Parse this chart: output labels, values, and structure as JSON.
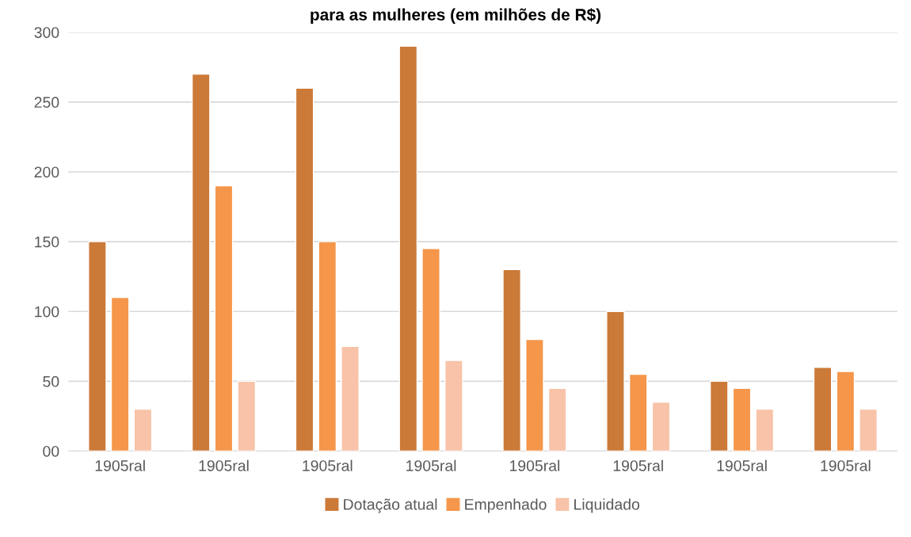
{
  "chart_data": {
    "type": "bar",
    "title": "para as mulheres (em milhões de R$)",
    "categories": [
      "1905ral",
      "1905ral",
      "1905ral",
      "1905ral",
      "1905ral",
      "1905ral",
      "1905ral",
      "1905ral"
    ],
    "series": [
      {
        "name": "Dotação atual",
        "color": "#cc7a38",
        "values": [
          150,
          270,
          260,
          290,
          130,
          100,
          50,
          60
        ]
      },
      {
        "name": "Empenhado",
        "color": "#f5964a",
        "values": [
          110,
          190,
          150,
          145,
          80,
          55,
          45,
          57
        ]
      },
      {
        "name": "Liquidado",
        "color": "#f8c3a8",
        "values": [
          30,
          50,
          75,
          65,
          45,
          35,
          30,
          30
        ]
      }
    ],
    "ylim": [
      0,
      300
    ],
    "yticks": [
      {
        "value": 0,
        "label": "00"
      },
      50,
      100,
      150,
      200,
      250,
      300
    ],
    "grid": "y",
    "legend": "bottom"
  }
}
